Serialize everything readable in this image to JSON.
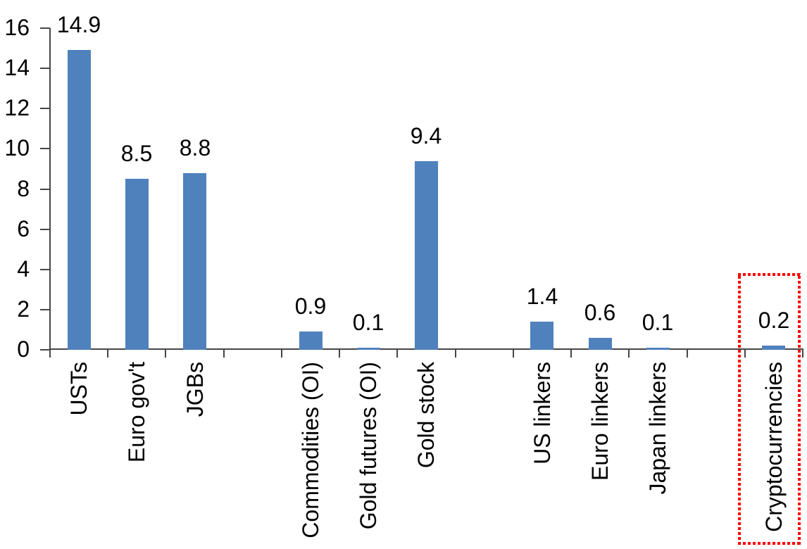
{
  "chart_data": {
    "type": "bar",
    "title": "",
    "xlabel": "",
    "ylabel": "",
    "categories": [
      "USTs",
      "Euro gov't",
      "JGBs",
      "",
      "Commodities (OI)",
      "Gold futures (OI)",
      "Gold stock",
      "",
      "US linkers",
      "Euro linkers",
      "Japan linkers",
      "",
      "Cryptocurrencies"
    ],
    "values": [
      14.9,
      8.5,
      8.8,
      null,
      0.9,
      0.1,
      9.4,
      null,
      1.4,
      0.6,
      0.1,
      null,
      0.2
    ],
    "data_labels": [
      "14.9",
      "8.5",
      "8.8",
      null,
      "0.9",
      "0.1",
      "9.4",
      null,
      "1.4",
      "0.6",
      "0.1",
      null,
      "0.2"
    ],
    "y_tick_labels": [
      "0",
      "2",
      "4",
      "6",
      "8",
      "10",
      "12",
      "14",
      "16"
    ],
    "ylim": [
      0,
      16
    ],
    "grid": false,
    "legend": null,
    "bar_color": "#4F81BD",
    "axis_color": "#464646",
    "text_color": "#000000",
    "highlight_box": {
      "around_category": "Cryptocurrencies",
      "slot_index": 12,
      "border_color": "#FF0000",
      "style": "square-dotted"
    }
  }
}
